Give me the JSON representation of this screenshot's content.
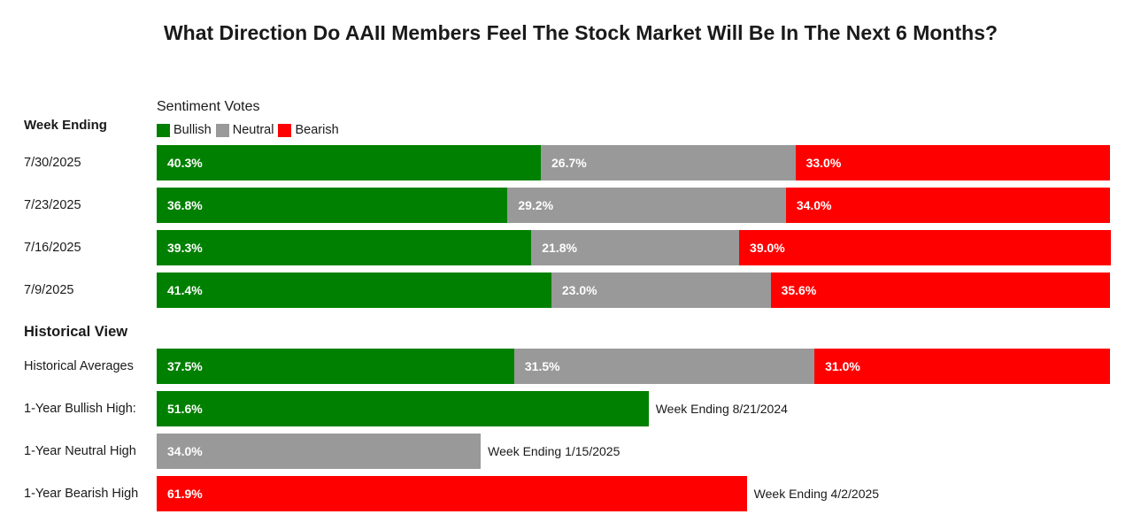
{
  "colors": {
    "bullish": "#008000",
    "neutral": "#999999",
    "bearish": "#ff0000"
  },
  "chart_data": {
    "type": "bar",
    "orientation": "horizontal",
    "stacked": true,
    "title": "What Direction Do AAII Members Feel The Stock Market Will Be In The Next 6 Months?",
    "legend_title": "Sentiment Votes",
    "legend": [
      "Bullish",
      "Neutral",
      "Bearish"
    ],
    "legend_position": "top-left",
    "grid": false,
    "xlim": [
      0,
      100
    ],
    "week_header": "Week Ending",
    "weekly": [
      {
        "label": "7/30/2025",
        "values": [
          40.3,
          26.7,
          33.0
        ],
        "display": [
          "40.3%",
          "26.7%",
          "33.0%"
        ]
      },
      {
        "label": "7/23/2025",
        "values": [
          36.8,
          29.2,
          34.0
        ],
        "display": [
          "36.8%",
          "29.2%",
          "34.0%"
        ]
      },
      {
        "label": "7/16/2025",
        "values": [
          39.3,
          21.8,
          39.0
        ],
        "display": [
          "39.3%",
          "21.8%",
          "39.0%"
        ]
      },
      {
        "label": "7/9/2025",
        "values": [
          41.4,
          23.0,
          35.6
        ],
        "display": [
          "41.4%",
          "23.0%",
          "35.6%"
        ]
      }
    ],
    "historical_header": "Historical View",
    "historical": {
      "label": "Historical Averages",
      "values": [
        37.5,
        31.5,
        31.0
      ],
      "display": [
        "37.5%",
        "31.5%",
        "31.0%"
      ]
    },
    "highs": [
      {
        "label": "1-Year Bullish High:",
        "value": 51.6,
        "display": "51.6%",
        "series": 0,
        "note": "Week Ending 8/21/2024"
      },
      {
        "label": "1-Year Neutral High",
        "value": 34.0,
        "display": "34.0%",
        "series": 1,
        "note": "Week Ending 1/15/2025"
      },
      {
        "label": "1-Year Bearish High",
        "value": 61.9,
        "display": "61.9%",
        "series": 2,
        "note": "Week Ending 4/2/2025"
      }
    ]
  }
}
